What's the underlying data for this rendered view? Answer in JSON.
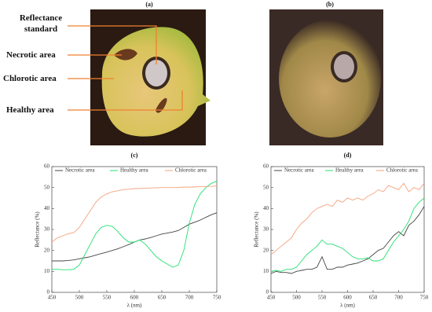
{
  "panels": {
    "a": "(a)",
    "b": "(b)"
  },
  "annotations": [
    "Reflectance standard",
    "Necrotic area",
    "Chlorotic area",
    "Healthy area"
  ],
  "chart_data": [
    {
      "type": "line",
      "title": "(c)",
      "xlabel": "λ (nm)",
      "ylabel": "Reflectance (%)",
      "legend": "top",
      "x": [
        450,
        460,
        470,
        480,
        490,
        500,
        510,
        520,
        530,
        540,
        550,
        560,
        570,
        580,
        590,
        600,
        610,
        620,
        630,
        640,
        650,
        660,
        670,
        680,
        690,
        700,
        710,
        720,
        730,
        740,
        750
      ],
      "xlim": [
        450,
        750
      ],
      "ylim": [
        0,
        60
      ],
      "xticks": [
        450,
        500,
        550,
        600,
        650,
        700,
        750
      ],
      "yticks": [
        0,
        10,
        20,
        30,
        40,
        50,
        60
      ],
      "series": [
        {
          "name": "Necrotic area",
          "color": "#444444",
          "values": [
            15,
            15,
            15,
            15.2,
            15.5,
            16,
            16.5,
            17,
            17.8,
            18.5,
            19.2,
            20,
            20.8,
            21.8,
            22.8,
            24,
            25,
            25.5,
            26.2,
            27,
            27.8,
            28.3,
            28.8,
            29.5,
            31,
            32.5,
            33.5,
            34.5,
            35.8,
            37,
            38
          ]
        },
        {
          "name": "Healthy area",
          "color": "#22e070",
          "values": [
            11,
            11,
            10.8,
            10.8,
            11,
            13,
            18,
            23,
            28,
            31,
            32,
            31.5,
            29,
            26,
            24,
            24,
            25,
            23,
            20,
            17,
            15,
            13.5,
            12,
            13,
            20,
            33,
            42,
            47,
            50,
            52,
            53
          ]
        },
        {
          "name": "Chlorotic area",
          "color": "#f5a27c",
          "values": [
            24,
            26,
            27,
            28,
            28.5,
            31,
            35,
            39,
            43,
            45.5,
            47,
            48,
            48.5,
            49,
            49.2,
            49.5,
            49.6,
            49.7,
            49.8,
            49.9,
            50,
            50,
            50,
            50.1,
            50.2,
            50.2,
            50.3,
            50.4,
            50.5,
            50.6,
            50.8
          ]
        }
      ]
    },
    {
      "type": "line",
      "title": "(d)",
      "xlabel": "λ (nm)",
      "ylabel": "Reflectance (%)",
      "legend": "top",
      "x": [
        450,
        460,
        470,
        480,
        490,
        500,
        510,
        520,
        530,
        540,
        550,
        560,
        570,
        580,
        590,
        600,
        610,
        620,
        630,
        640,
        650,
        660,
        670,
        680,
        690,
        700,
        710,
        720,
        730,
        740,
        750
      ],
      "xlim": [
        450,
        750
      ],
      "ylim": [
        0,
        60
      ],
      "xticks": [
        450,
        500,
        550,
        600,
        650,
        700,
        750
      ],
      "yticks": [
        0,
        10,
        20,
        30,
        40,
        50,
        60
      ],
      "series": [
        {
          "name": "Necrotic area",
          "color": "#444444",
          "values": [
            9,
            10,
            9.5,
            9.5,
            9,
            10,
            10.5,
            11,
            11,
            12,
            17,
            11,
            11,
            12,
            12,
            13,
            13.5,
            14,
            15,
            16,
            18,
            20,
            21,
            24,
            27,
            29,
            27,
            32,
            34,
            37,
            41
          ]
        },
        {
          "name": "Healthy area",
          "color": "#22e070",
          "values": [
            10,
            10.5,
            10,
            11,
            11,
            12,
            15,
            18,
            20,
            22,
            25,
            23,
            23,
            22,
            21,
            19,
            17,
            16,
            16,
            16.5,
            15,
            15,
            16,
            20,
            24,
            27,
            30,
            34,
            40,
            43,
            45
          ]
        },
        {
          "name": "Chlorotic area",
          "color": "#f5a27c",
          "values": [
            18,
            20,
            22,
            24,
            26,
            30,
            33,
            35,
            38,
            40,
            41,
            42,
            41,
            44,
            43,
            45,
            44,
            45,
            44,
            46,
            47,
            49,
            48,
            51,
            50,
            49,
            52,
            48,
            50,
            49,
            52
          ]
        }
      ]
    }
  ]
}
